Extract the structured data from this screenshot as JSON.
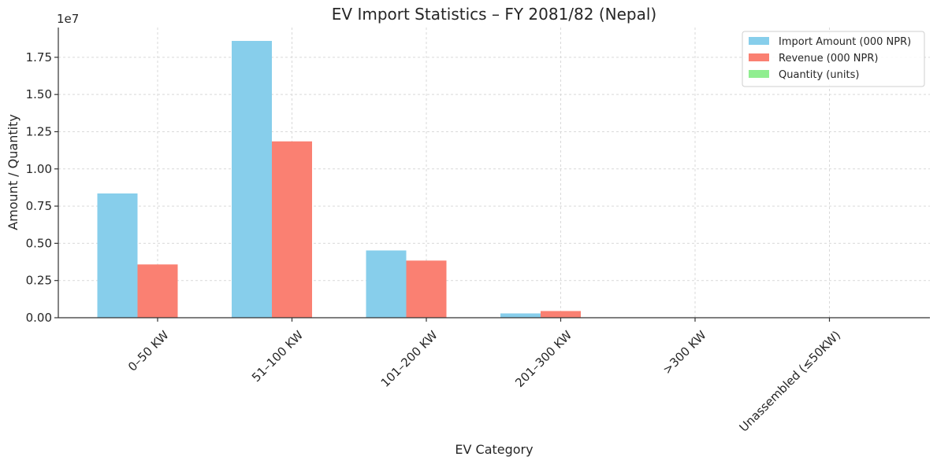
{
  "chart_data": {
    "type": "bar",
    "title": "EV Import Statistics – FY 2081/82 (Nepal)",
    "xlabel": "EV Category",
    "ylabel": "Amount / Quantity",
    "y_offset_label": "1e7",
    "categories": [
      "0–50 KW",
      "51–100 KW",
      "101–200 KW",
      "201–300 KW",
      ">300 KW",
      "Unassembled (≤50KW)"
    ],
    "series": [
      {
        "name": "Import Amount (000 NPR)",
        "color": "#87ceeb",
        "values": [
          8350000,
          18600000,
          4520000,
          290000,
          0,
          0
        ]
      },
      {
        "name": "Revenue (000 NPR)",
        "color": "#fa8072",
        "values": [
          3580000,
          11850000,
          3840000,
          450000,
          0,
          0
        ]
      },
      {
        "name": "Quantity (units)",
        "color": "#90ee90",
        "values": [
          0,
          0,
          0,
          0,
          0,
          0
        ]
      }
    ],
    "ylim": [
      0,
      19500000
    ],
    "yticks": [
      0,
      2500000,
      5000000,
      7500000,
      10000000,
      12500000,
      15000000,
      17500000
    ],
    "ytick_labels": [
      "0.00",
      "0.25",
      "0.50",
      "0.75",
      "1.00",
      "1.25",
      "1.50",
      "1.75"
    ],
    "grid": true,
    "legend_position": "top-right"
  }
}
